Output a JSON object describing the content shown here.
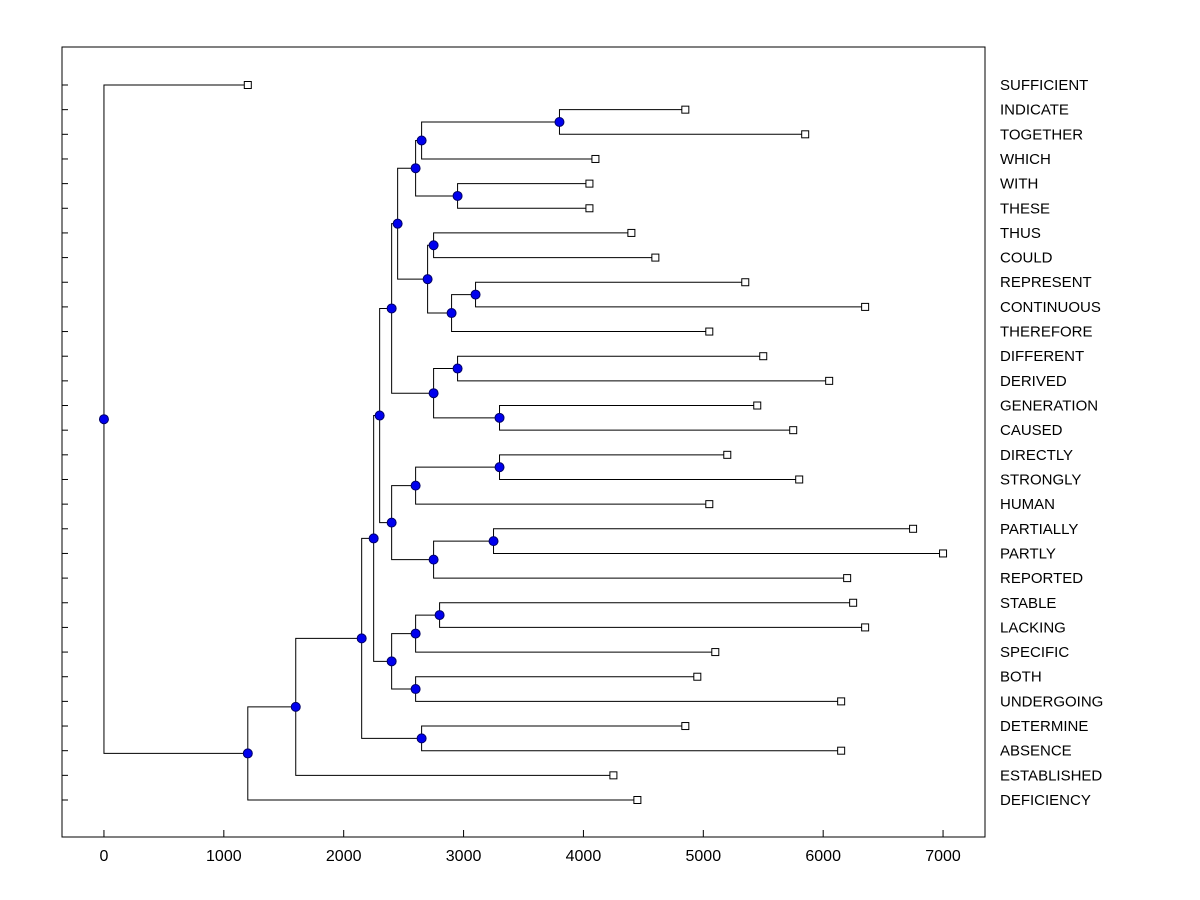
{
  "chart_data": {
    "type": "dendrogram",
    "orientation": "left-to-right",
    "title": "",
    "xlabel": "",
    "ylabel": "",
    "xlim": [
      -350,
      7350
    ],
    "x_ticks": [
      0,
      1000,
      2000,
      3000,
      4000,
      5000,
      6000,
      7000
    ],
    "grid": false,
    "legend": "none",
    "leaves": [
      {
        "name": "SUFFICIENT",
        "x": 1200
      },
      {
        "name": "INDICATE",
        "x": 4850
      },
      {
        "name": "TOGETHER",
        "x": 5850
      },
      {
        "name": "WHICH",
        "x": 4100
      },
      {
        "name": "WITH",
        "x": 4050
      },
      {
        "name": "THESE",
        "x": 4050
      },
      {
        "name": "THUS",
        "x": 4400
      },
      {
        "name": "COULD",
        "x": 4600
      },
      {
        "name": "REPRESENT",
        "x": 5350
      },
      {
        "name": "CONTINUOUS",
        "x": 6350
      },
      {
        "name": "THEREFORE",
        "x": 5050
      },
      {
        "name": "DIFFERENT",
        "x": 5500
      },
      {
        "name": "DERIVED",
        "x": 6050
      },
      {
        "name": "GENERATION",
        "x": 5450
      },
      {
        "name": "CAUSED",
        "x": 5750
      },
      {
        "name": "DIRECTLY",
        "x": 5200
      },
      {
        "name": "STRONGLY",
        "x": 5800
      },
      {
        "name": "HUMAN",
        "x": 5050
      },
      {
        "name": "PARTIALLY",
        "x": 6750
      },
      {
        "name": "PARTLY",
        "x": 7000
      },
      {
        "name": "REPORTED",
        "x": 6200
      },
      {
        "name": "STABLE",
        "x": 6250
      },
      {
        "name": "LACKING",
        "x": 6350
      },
      {
        "name": "SPECIFIC",
        "x": 5100
      },
      {
        "name": "BOTH",
        "x": 4950
      },
      {
        "name": "UNDERGOING",
        "x": 6150
      },
      {
        "name": "DETERMINE",
        "x": 4850
      },
      {
        "name": "ABSENCE",
        "x": 6150
      },
      {
        "name": "ESTABLISHED",
        "x": 4250
      },
      {
        "name": "DEFICIENCY",
        "x": 4450
      }
    ],
    "nodes": [
      {
        "id": "n_ind_tog",
        "x": 3800,
        "children": [
          "INDICATE",
          "TOGETHER"
        ]
      },
      {
        "id": "n_which",
        "x": 2650,
        "children": [
          "n_ind_tog",
          "WHICH"
        ]
      },
      {
        "id": "n_with_these",
        "x": 2950,
        "children": [
          "WITH",
          "THESE"
        ]
      },
      {
        "id": "n_top4",
        "x": 2600,
        "children": [
          "n_which",
          "n_with_these"
        ]
      },
      {
        "id": "n_thus_could",
        "x": 2750,
        "children": [
          "THUS",
          "COULD"
        ]
      },
      {
        "id": "n_rep_cont",
        "x": 3100,
        "children": [
          "REPRESENT",
          "CONTINUOUS"
        ]
      },
      {
        "id": "n_therefore",
        "x": 2900,
        "children": [
          "n_rep_cont",
          "THEREFORE"
        ]
      },
      {
        "id": "n_tc_rt",
        "x": 2700,
        "children": [
          "n_thus_could",
          "n_therefore"
        ]
      },
      {
        "id": "n_upper",
        "x": 2450,
        "children": [
          "n_top4",
          "n_tc_rt"
        ]
      },
      {
        "id": "n_diff_der",
        "x": 2950,
        "children": [
          "DIFFERENT",
          "DERIVED"
        ]
      },
      {
        "id": "n_gen_caus",
        "x": 3300,
        "children": [
          "GENERATION",
          "CAUSED"
        ]
      },
      {
        "id": "n_mid4",
        "x": 2750,
        "children": [
          "n_diff_der",
          "n_gen_caus"
        ]
      },
      {
        "id": "n_upper2",
        "x": 2400,
        "children": [
          "n_upper",
          "n_mid4"
        ]
      },
      {
        "id": "n_dir_str",
        "x": 3300,
        "children": [
          "DIRECTLY",
          "STRONGLY"
        ]
      },
      {
        "id": "n_human",
        "x": 2600,
        "children": [
          "n_dir_str",
          "HUMAN"
        ]
      },
      {
        "id": "n_part_part",
        "x": 3250,
        "children": [
          "PARTIALLY",
          "PARTLY"
        ]
      },
      {
        "id": "n_reported",
        "x": 2750,
        "children": [
          "n_part_part",
          "REPORTED"
        ]
      },
      {
        "id": "n_mid6",
        "x": 2400,
        "children": [
          "n_human",
          "n_reported"
        ]
      },
      {
        "id": "n_big_mid",
        "x": 2300,
        "children": [
          "n_upper2",
          "n_mid6"
        ]
      },
      {
        "id": "n_stab_lack",
        "x": 2800,
        "children": [
          "STABLE",
          "LACKING"
        ]
      },
      {
        "id": "n_specific",
        "x": 2600,
        "children": [
          "n_stab_lack",
          "SPECIFIC"
        ]
      },
      {
        "id": "n_both_und",
        "x": 2600,
        "children": [
          "BOTH",
          "UNDERGOING"
        ]
      },
      {
        "id": "n_low5",
        "x": 2400,
        "children": [
          "n_specific",
          "n_both_und"
        ]
      },
      {
        "id": "n_big_low",
        "x": 2250,
        "children": [
          "n_big_mid",
          "n_low5"
        ]
      },
      {
        "id": "n_det_abs",
        "x": 2650,
        "children": [
          "DETERMINE",
          "ABSENCE"
        ]
      },
      {
        "id": "n_almost",
        "x": 2150,
        "children": [
          "n_big_low",
          "n_det_abs"
        ]
      },
      {
        "id": "n_estab",
        "x": 1600,
        "children": [
          "n_almost",
          "ESTABLISHED"
        ]
      },
      {
        "id": "n_defic",
        "x": 1200,
        "children": [
          "n_estab",
          "DEFICIENCY"
        ]
      },
      {
        "id": "root",
        "x": 0,
        "children": [
          "SUFFICIENT",
          "n_defic"
        ]
      }
    ],
    "styles": {
      "background": "#ffffff",
      "branch_color": "#000000",
      "internal_marker_fill": "#0000ee",
      "internal_marker_edge": "#000066",
      "leaf_marker_fill": "#ffffff",
      "leaf_marker_edge": "#000000",
      "text_color": "#000000"
    }
  }
}
